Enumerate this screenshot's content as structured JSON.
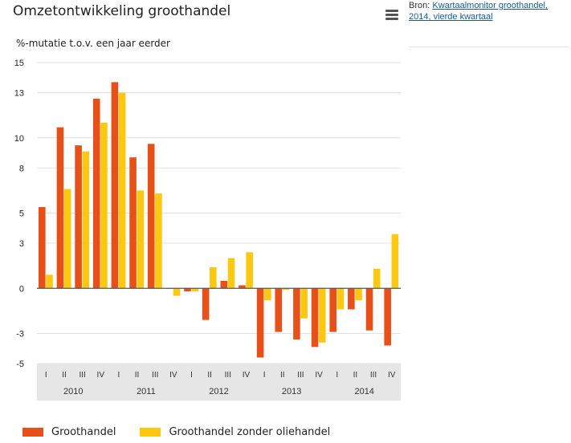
{
  "header": {
    "title": "Omzetontwikkeling groothandel",
    "source_prefix": "Bron: ",
    "source_link": "Kwartaalmonitor groothandel, 2014, vierde kwartaal",
    "menu_icon": "hamburger-menu-icon"
  },
  "colors": {
    "series1": "#e8501a",
    "series2": "#fcc812",
    "band": "#e6e6e6",
    "grid": "#e2e2e2",
    "zero": "#555555"
  },
  "chart_data": {
    "type": "bar",
    "ylabel": "%-mutatie t.o.v. een jaar eerder",
    "ylim": [
      -5,
      15
    ],
    "yticks": [
      15,
      13,
      10,
      8,
      5,
      3,
      0,
      -3,
      -5
    ],
    "grid": true,
    "legend_position": "bottom-left",
    "categories": [
      "I",
      "II",
      "III",
      "IV",
      "I",
      "II",
      "III",
      "IV",
      "I",
      "II",
      "III",
      "IV",
      "I",
      "II",
      "III",
      "IV",
      "I",
      "II",
      "III",
      "IV"
    ],
    "years": [
      "2010",
      "2011",
      "2012",
      "2013",
      "2014"
    ],
    "series": [
      {
        "name": "Groothandel",
        "values": [
          5.4,
          10.7,
          9.5,
          12.6,
          13.7,
          8.7,
          9.6,
          0,
          -0.2,
          -2.1,
          0.5,
          0.2,
          -4.6,
          -2.9,
          -3.4,
          -3.9,
          -2.9,
          -1.4,
          -2.8,
          -3.8
        ]
      },
      {
        "name": "Groothandel zonder oliehandel",
        "values": [
          0.9,
          6.6,
          9.1,
          11.0,
          13.0,
          6.5,
          6.3,
          -0.5,
          -0.2,
          1.4,
          2.0,
          2.4,
          -0.8,
          -0.1,
          -2.0,
          -3.6,
          -1.4,
          -0.8,
          1.3,
          3.6
        ]
      }
    ]
  }
}
